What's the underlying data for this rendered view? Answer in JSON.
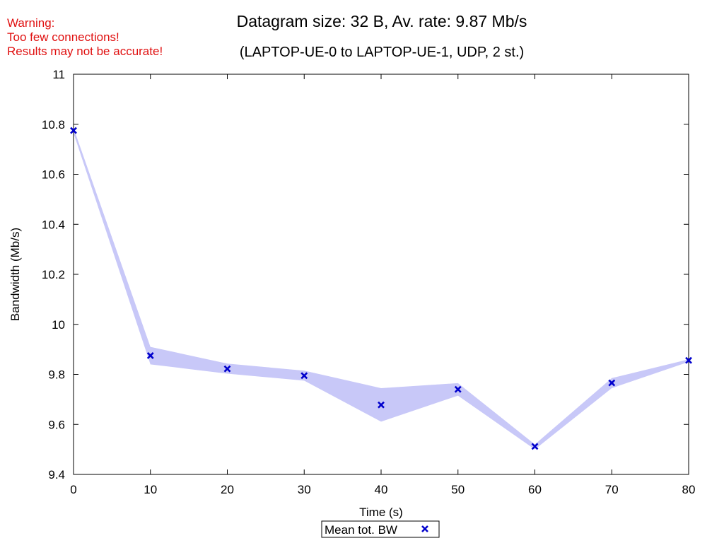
{
  "warning": {
    "lines": [
      "Warning:",
      "Too few connections!",
      "Results may not be accurate!"
    ],
    "color": "#e01010"
  },
  "chart_data": {
    "type": "line",
    "title": "Datagram size: 32 B, Av. rate: 9.87 Mb/s",
    "subtitle": "(LAPTOP-UE-0 to LAPTOP-UE-1, UDP, 2 st.)",
    "xlabel": "Time (s)",
    "ylabel": "Bandwidth (Mb/s)",
    "xlim": [
      0,
      80
    ],
    "ylim": [
      9.4,
      11
    ],
    "xticks": [
      0,
      10,
      20,
      30,
      40,
      50,
      60,
      70,
      80
    ],
    "yticks": [
      9.4,
      9.6,
      9.8,
      10,
      10.2,
      10.4,
      10.6,
      10.8,
      11
    ],
    "ytick_labels": [
      "9.4",
      "9.6",
      "9.8",
      "10",
      "10.2",
      "10.4",
      "10.6",
      "10.8",
      "11"
    ],
    "grid": false,
    "legend": "bottom-center",
    "series": [
      {
        "name": "Mean tot. BW",
        "marker": "x",
        "color": "#0000cc",
        "x": [
          0,
          10,
          20,
          30,
          40,
          50,
          60,
          70,
          80
        ],
        "values": [
          10.775,
          9.875,
          9.822,
          9.795,
          9.678,
          9.74,
          9.512,
          9.766,
          9.856
        ]
      }
    ],
    "band": {
      "color": "#c8c8f8",
      "x": [
        0,
        10,
        20,
        30,
        40,
        50,
        60,
        70,
        80
      ],
      "upper": [
        10.785,
        9.91,
        9.843,
        9.815,
        9.745,
        9.765,
        9.52,
        9.785,
        9.86
      ],
      "lower": [
        10.765,
        9.84,
        9.803,
        9.775,
        9.611,
        9.715,
        9.5,
        9.745,
        9.85
      ]
    }
  }
}
